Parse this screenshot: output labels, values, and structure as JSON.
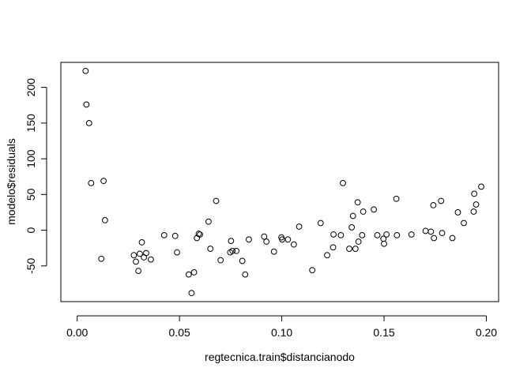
{
  "chart_data": {
    "type": "scatter",
    "title": "",
    "xlabel": "regtecnica.train$distancianodo",
    "ylabel": "modelo$residuals",
    "xlim": [
      -0.008,
      0.206
    ],
    "ylim": [
      -100,
      235
    ],
    "x_ticks": [
      0.0,
      0.05,
      0.1,
      0.15,
      0.2
    ],
    "x_tick_labels": [
      "0.00",
      "0.05",
      "0.10",
      "0.15",
      "0.20"
    ],
    "y_ticks": [
      -50,
      0,
      50,
      100,
      150,
      200
    ],
    "y_tick_labels": [
      "-50",
      "0",
      "50",
      "100",
      "150",
      "200"
    ],
    "grid": false,
    "legend": "none",
    "marker": "open-circle",
    "colors": {
      "point": "#000000",
      "axis": "#000000",
      "background": "#ffffff"
    },
    "points": [
      {
        "x": 0.0041,
        "y": 223
      },
      {
        "x": 0.0045,
        "y": 176
      },
      {
        "x": 0.0058,
        "y": 150
      },
      {
        "x": 0.0068,
        "y": 66
      },
      {
        "x": 0.0118,
        "y": -40
      },
      {
        "x": 0.0129,
        "y": 69
      },
      {
        "x": 0.0136,
        "y": 14
      },
      {
        "x": 0.0277,
        "y": -35
      },
      {
        "x": 0.0287,
        "y": -44
      },
      {
        "x": 0.0299,
        "y": -57
      },
      {
        "x": 0.0306,
        "y": -33
      },
      {
        "x": 0.0316,
        "y": -17
      },
      {
        "x": 0.0326,
        "y": -38
      },
      {
        "x": 0.0337,
        "y": -32
      },
      {
        "x": 0.036,
        "y": -41
      },
      {
        "x": 0.0425,
        "y": -7
      },
      {
        "x": 0.0479,
        "y": -8
      },
      {
        "x": 0.0488,
        "y": -31
      },
      {
        "x": 0.0545,
        "y": -62
      },
      {
        "x": 0.0559,
        "y": -88
      },
      {
        "x": 0.0571,
        "y": -59
      },
      {
        "x": 0.0585,
        "y": -11
      },
      {
        "x": 0.0594,
        "y": -5
      },
      {
        "x": 0.06,
        "y": -6
      },
      {
        "x": 0.0642,
        "y": 12
      },
      {
        "x": 0.0651,
        "y": -26
      },
      {
        "x": 0.0679,
        "y": 41
      },
      {
        "x": 0.0701,
        "y": -42
      },
      {
        "x": 0.0748,
        "y": -31
      },
      {
        "x": 0.0752,
        "y": -15
      },
      {
        "x": 0.0759,
        "y": -29
      },
      {
        "x": 0.0778,
        "y": -29
      },
      {
        "x": 0.0807,
        "y": -43
      },
      {
        "x": 0.0821,
        "y": -62
      },
      {
        "x": 0.0839,
        "y": -13
      },
      {
        "x": 0.0914,
        "y": -9
      },
      {
        "x": 0.0925,
        "y": -16
      },
      {
        "x": 0.0962,
        "y": -30
      },
      {
        "x": 0.0998,
        "y": -10
      },
      {
        "x": 0.1002,
        "y": -13
      },
      {
        "x": 0.103,
        "y": -13
      },
      {
        "x": 0.1059,
        "y": -20
      },
      {
        "x": 0.1085,
        "y": 5
      },
      {
        "x": 0.1149,
        "y": -56
      },
      {
        "x": 0.119,
        "y": 10
      },
      {
        "x": 0.1222,
        "y": -35
      },
      {
        "x": 0.1251,
        "y": -24
      },
      {
        "x": 0.1253,
        "y": -6
      },
      {
        "x": 0.1289,
        "y": -7
      },
      {
        "x": 0.1299,
        "y": 66
      },
      {
        "x": 0.133,
        "y": -26
      },
      {
        "x": 0.1342,
        "y": 4
      },
      {
        "x": 0.1348,
        "y": 20
      },
      {
        "x": 0.136,
        "y": -26
      },
      {
        "x": 0.1371,
        "y": 39
      },
      {
        "x": 0.1375,
        "y": -16
      },
      {
        "x": 0.1393,
        "y": -7
      },
      {
        "x": 0.1398,
        "y": 26
      },
      {
        "x": 0.145,
        "y": 29
      },
      {
        "x": 0.1467,
        "y": -7
      },
      {
        "x": 0.1497,
        "y": -12
      },
      {
        "x": 0.15,
        "y": -19
      },
      {
        "x": 0.1512,
        "y": -6
      },
      {
        "x": 0.156,
        "y": 44
      },
      {
        "x": 0.1563,
        "y": -7
      },
      {
        "x": 0.1634,
        "y": -6
      },
      {
        "x": 0.1703,
        "y": -1
      },
      {
        "x": 0.1729,
        "y": -2
      },
      {
        "x": 0.1741,
        "y": 35
      },
      {
        "x": 0.1744,
        "y": -11
      },
      {
        "x": 0.1779,
        "y": 41
      },
      {
        "x": 0.1784,
        "y": -4
      },
      {
        "x": 0.1834,
        "y": -11
      },
      {
        "x": 0.1861,
        "y": 25
      },
      {
        "x": 0.189,
        "y": 10
      },
      {
        "x": 0.1938,
        "y": 26
      },
      {
        "x": 0.1941,
        "y": 51
      },
      {
        "x": 0.195,
        "y": 36
      },
      {
        "x": 0.1975,
        "y": 61
      }
    ]
  }
}
